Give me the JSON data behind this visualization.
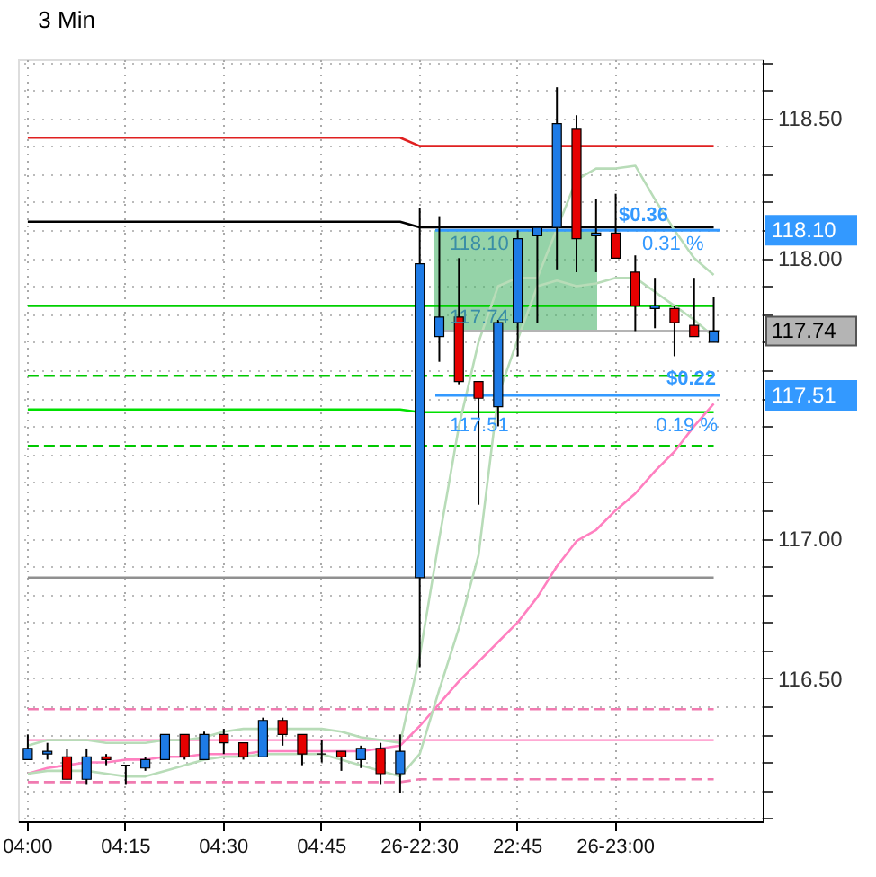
{
  "chart_data": {
    "type": "candlestick",
    "title": "3 Min",
    "categories": [
      "04:00",
      null,
      null,
      null,
      null,
      "04:15",
      null,
      null,
      null,
      null,
      "04:30",
      null,
      null,
      null,
      null,
      "04:45",
      null,
      null,
      null,
      null,
      "26-22:30",
      null,
      null,
      null,
      null,
      "22:45",
      null,
      null,
      null,
      null,
      "26-23:00",
      null,
      null,
      null,
      null,
      null,
      null,
      null
    ],
    "ohlc": [
      [
        116.21,
        116.3,
        116.21,
        116.25
      ],
      [
        116.23,
        116.27,
        116.21,
        116.24
      ],
      [
        116.22,
        116.25,
        116.14,
        116.14
      ],
      [
        116.14,
        116.25,
        116.12,
        116.22
      ],
      [
        116.22,
        116.23,
        116.19,
        116.21
      ],
      [
        116.19,
        116.19,
        116.12,
        116.19
      ],
      [
        116.18,
        116.22,
        116.17,
        116.21
      ],
      [
        116.21,
        116.3,
        116.21,
        116.3
      ],
      [
        116.3,
        116.3,
        116.21,
        116.22
      ],
      [
        116.21,
        116.31,
        116.21,
        116.3
      ],
      [
        116.3,
        116.32,
        116.23,
        116.27
      ],
      [
        116.27,
        116.27,
        116.21,
        116.22
      ],
      [
        116.22,
        116.36,
        116.22,
        116.35
      ],
      [
        116.35,
        116.36,
        116.26,
        116.3
      ],
      [
        116.3,
        116.3,
        116.19,
        116.23
      ],
      [
        116.23,
        116.28,
        116.2,
        116.23
      ],
      [
        116.24,
        116.24,
        116.17,
        116.22
      ],
      [
        116.21,
        116.26,
        116.18,
        116.25
      ],
      [
        116.25,
        116.27,
        116.12,
        116.16
      ],
      [
        116.16,
        116.3,
        116.09,
        116.24
      ],
      [
        116.86,
        118.18,
        116.54,
        117.98
      ],
      [
        117.72,
        118.15,
        117.63,
        117.79
      ],
      [
        117.79,
        118.0,
        117.55,
        117.56
      ],
      [
        117.56,
        117.56,
        117.12,
        117.5
      ],
      [
        117.47,
        117.78,
        117.4,
        117.77
      ],
      [
        117.77,
        118.1,
        117.65,
        118.07
      ],
      [
        118.08,
        118.11,
        117.77,
        118.11
      ],
      [
        118.11,
        118.61,
        117.96,
        118.48
      ],
      [
        118.46,
        118.51,
        117.95,
        118.07
      ],
      [
        118.08,
        118.21,
        117.95,
        118.09
      ],
      [
        118.09,
        118.23,
        118.0,
        118.0
      ],
      [
        117.95,
        118.01,
        117.74,
        117.83
      ],
      [
        117.82,
        117.93,
        117.75,
        117.83
      ],
      [
        117.82,
        117.83,
        117.65,
        117.77
      ],
      [
        117.76,
        117.93,
        117.72,
        117.72
      ],
      [
        117.7,
        117.86,
        117.7,
        117.74
      ],
      null,
      null
    ],
    "colors": [
      "#1e7be6",
      "#1e7be6",
      "#e60000",
      "#1e7be6",
      "#e60000",
      "#000000",
      "#1e7be6",
      "#1e7be6",
      "#e60000",
      "#1e7be6",
      "#e60000",
      "#e60000",
      "#1e7be6",
      "#e60000",
      "#e60000",
      "#000000",
      "#e60000",
      "#1e7be6",
      "#e60000",
      "#1e7be6",
      "#1e7be6",
      "#1e7be6",
      "#e60000",
      "#e60000",
      "#1e7be6",
      "#1e7be6",
      "#1e7be6",
      "#1e7be6",
      "#e60000",
      "#1e7be6",
      "#e60000",
      "#e60000",
      "#1e7be6",
      "#e60000",
      "#e60000",
      "#1e7be6",
      null,
      null
    ],
    "series": [
      {
        "type": "line",
        "color": "#e02020",
        "values": [
          118.43,
          118.43,
          118.43,
          118.43,
          118.43,
          118.43,
          118.43,
          118.43,
          118.43,
          118.43,
          118.43,
          118.43,
          118.43,
          118.43,
          118.43,
          118.43,
          118.43,
          118.43,
          118.43,
          118.43,
          118.4,
          118.4,
          118.4,
          118.4,
          118.4,
          118.4,
          118.4,
          118.4,
          118.4,
          118.4,
          118.4,
          118.4,
          118.4,
          118.4,
          118.4,
          118.4,
          null,
          null
        ]
      },
      {
        "type": "line",
        "color": "#000000",
        "values": [
          118.13,
          118.13,
          118.13,
          118.13,
          118.13,
          118.13,
          118.13,
          118.13,
          118.13,
          118.13,
          118.13,
          118.13,
          118.13,
          118.13,
          118.13,
          118.13,
          118.13,
          118.13,
          118.13,
          118.13,
          118.11,
          118.11,
          118.11,
          118.11,
          118.11,
          118.11,
          118.11,
          118.11,
          118.11,
          118.11,
          118.11,
          118.11,
          118.11,
          118.11,
          118.11,
          118.11,
          null,
          null
        ]
      },
      {
        "type": "line",
        "color": "#00d000",
        "values": [
          117.83,
          117.83,
          117.83,
          117.83,
          117.83,
          117.83,
          117.83,
          117.83,
          117.83,
          117.83,
          117.83,
          117.83,
          117.83,
          117.83,
          117.83,
          117.83,
          117.83,
          117.83,
          117.83,
          117.83,
          117.83,
          117.83,
          117.83,
          117.83,
          117.83,
          117.83,
          117.83,
          117.83,
          117.83,
          117.83,
          117.83,
          117.83,
          117.83,
          117.83,
          117.83,
          117.83,
          null,
          null
        ]
      },
      {
        "type": "line",
        "color": "#00c800",
        "line_style": "dashed",
        "values": [
          117.58,
          117.58,
          117.58,
          117.58,
          117.58,
          117.58,
          117.58,
          117.58,
          117.58,
          117.58,
          117.58,
          117.58,
          117.58,
          117.58,
          117.58,
          117.58,
          117.58,
          117.58,
          117.58,
          117.58,
          117.58,
          117.58,
          117.58,
          117.58,
          117.58,
          117.58,
          117.58,
          117.58,
          117.58,
          117.58,
          117.58,
          117.58,
          117.58,
          117.58,
          117.58,
          117.58,
          null,
          null
        ]
      },
      {
        "type": "line",
        "color": "#00e000",
        "values": [
          117.46,
          117.46,
          117.46,
          117.46,
          117.46,
          117.46,
          117.46,
          117.46,
          117.46,
          117.46,
          117.46,
          117.46,
          117.46,
          117.46,
          117.46,
          117.46,
          117.46,
          117.46,
          117.46,
          117.46,
          117.45,
          117.45,
          117.45,
          117.45,
          117.45,
          117.45,
          117.45,
          117.45,
          117.45,
          117.45,
          117.45,
          117.45,
          117.45,
          117.45,
          117.45,
          117.45,
          null,
          null
        ]
      },
      {
        "type": "line",
        "color": "#00c800",
        "line_style": "dashed",
        "values": [
          117.33,
          117.33,
          117.33,
          117.33,
          117.33,
          117.33,
          117.33,
          117.33,
          117.33,
          117.33,
          117.33,
          117.33,
          117.33,
          117.33,
          117.33,
          117.33,
          117.33,
          117.33,
          117.33,
          117.33,
          117.33,
          117.33,
          117.33,
          117.33,
          117.33,
          117.33,
          117.33,
          117.33,
          117.33,
          117.33,
          117.33,
          117.33,
          117.33,
          117.33,
          117.33,
          117.33,
          null,
          null
        ]
      },
      {
        "type": "line",
        "color": "#909090",
        "values": [
          116.86,
          116.86,
          116.86,
          116.86,
          116.86,
          116.86,
          116.86,
          116.86,
          116.86,
          116.86,
          116.86,
          116.86,
          116.86,
          116.86,
          116.86,
          116.86,
          116.86,
          116.86,
          116.86,
          116.86,
          116.86,
          116.86,
          116.86,
          116.86,
          116.86,
          116.86,
          116.86,
          116.86,
          116.86,
          116.86,
          116.86,
          116.86,
          116.86,
          116.86,
          116.86,
          116.86,
          null,
          null
        ]
      },
      {
        "type": "line",
        "color": "#f07ab0",
        "line_style": "dashed",
        "values": [
          116.39,
          116.39,
          116.39,
          116.39,
          116.39,
          116.39,
          116.39,
          116.39,
          116.39,
          116.39,
          116.39,
          116.39,
          116.39,
          116.39,
          116.39,
          116.39,
          116.39,
          116.39,
          116.39,
          116.39,
          116.39,
          116.39,
          116.39,
          116.39,
          116.39,
          116.39,
          116.39,
          116.39,
          116.39,
          116.39,
          116.39,
          116.39,
          116.39,
          116.39,
          116.39,
          116.39,
          null,
          null
        ]
      },
      {
        "type": "line",
        "color": "#ffaad4",
        "values": [
          116.28,
          116.28,
          116.28,
          116.28,
          116.28,
          116.28,
          116.28,
          116.28,
          116.28,
          116.28,
          116.28,
          116.28,
          116.28,
          116.28,
          116.28,
          116.28,
          116.28,
          116.28,
          116.28,
          116.28,
          116.28,
          116.28,
          116.28,
          116.28,
          116.28,
          116.28,
          116.28,
          116.28,
          116.28,
          116.28,
          116.28,
          116.28,
          116.28,
          116.28,
          116.28,
          116.28,
          null,
          null
        ]
      },
      {
        "type": "line",
        "color": "#f07ab0",
        "line_style": "dashed",
        "values": [
          116.13,
          116.13,
          116.13,
          116.13,
          116.13,
          116.13,
          116.13,
          116.13,
          116.13,
          116.13,
          116.13,
          116.13,
          116.13,
          116.13,
          116.13,
          116.13,
          116.13,
          116.13,
          116.13,
          116.13,
          116.14,
          116.14,
          116.14,
          116.14,
          116.14,
          116.14,
          116.14,
          116.14,
          116.14,
          116.14,
          116.14,
          116.14,
          116.14,
          116.14,
          116.14,
          116.14,
          null,
          null
        ]
      },
      {
        "type": "line",
        "color": "#ff80c0",
        "values": [
          116.16,
          116.18,
          116.19,
          116.2,
          116.2,
          116.21,
          116.21,
          116.22,
          116.22,
          116.23,
          116.23,
          116.23,
          116.24,
          116.24,
          116.24,
          116.24,
          116.24,
          116.24,
          116.25,
          116.26,
          116.33,
          116.41,
          116.49,
          116.56,
          116.63,
          116.7,
          116.79,
          116.9,
          116.99,
          117.03,
          117.1,
          117.16,
          117.24,
          117.31,
          117.4,
          117.48,
          null,
          null
        ]
      },
      {
        "type": "line",
        "color": "#b8dcb8",
        "values": [
          116.26,
          116.28,
          116.28,
          116.28,
          116.27,
          116.27,
          116.27,
          116.28,
          116.28,
          116.29,
          116.31,
          116.32,
          116.32,
          116.32,
          116.32,
          116.32,
          116.31,
          116.29,
          116.28,
          116.27,
          116.58,
          117.0,
          117.4,
          117.7,
          117.9,
          117.93,
          117.93,
          null,
          118.28,
          118.32,
          118.32,
          118.33,
          118.21,
          118.1,
          118.0,
          117.94,
          null,
          null
        ]
      },
      {
        "type": "line",
        "color": "#b8dcb8",
        "values": [
          116.16,
          116.17,
          116.17,
          116.17,
          116.16,
          116.15,
          116.15,
          116.17,
          116.19,
          116.21,
          116.22,
          116.22,
          116.23,
          116.23,
          116.23,
          116.23,
          116.21,
          116.19,
          116.17,
          116.15,
          116.23,
          116.46,
          116.68,
          116.94,
          117.51,
          117.71,
          117.9,
          117.92,
          117.9,
          117.91,
          117.93,
          117.93,
          117.88,
          117.83,
          117.78,
          117.72,
          null,
          null
        ]
      }
    ],
    "ylim": [
      115.99,
      118.71
    ],
    "yticks": [
      {
        "value": 116.0,
        "label": null
      },
      {
        "value": 116.1,
        "label": null
      },
      {
        "value": 116.2,
        "label": null
      },
      {
        "value": 116.3,
        "label": null
      },
      {
        "value": 116.4,
        "label": null
      },
      {
        "value": 116.5,
        "label": "116.50"
      },
      {
        "value": 116.6,
        "label": null
      },
      {
        "value": 116.7,
        "label": null
      },
      {
        "value": 116.8,
        "label": null
      },
      {
        "value": 116.9,
        "label": null
      },
      {
        "value": 117.0,
        "label": "117.00"
      },
      {
        "value": 117.1,
        "label": null
      },
      {
        "value": 117.2,
        "label": null
      },
      {
        "value": 117.3,
        "label": null
      },
      {
        "value": 117.4,
        "label": null
      },
      {
        "value": 117.5,
        "label": null
      },
      {
        "value": 117.6,
        "label": null
      },
      {
        "value": 117.7,
        "label": null
      },
      {
        "value": 117.8,
        "label": null
      },
      {
        "value": 117.9,
        "label": null
      },
      {
        "value": 118.0,
        "label": "118.00"
      },
      {
        "value": 118.1,
        "label": null
      },
      {
        "value": 118.2,
        "label": null
      },
      {
        "value": 118.3,
        "label": null
      },
      {
        "value": 118.4,
        "label": null
      },
      {
        "value": 118.5,
        "label": "118.50"
      },
      {
        "value": 118.6,
        "label": null
      },
      {
        "value": 118.7,
        "label": null
      }
    ],
    "ref_lines": [
      {
        "axis": "y",
        "value": 118.1,
        "label": "118.10",
        "color": "#3399ff"
      },
      {
        "axis": "y",
        "value": 117.74,
        "label": "117.74",
        "color": "#b4b4b4"
      },
      {
        "axis": "y",
        "value": 117.51,
        "label": "117.51",
        "color": "#3399ff"
      }
    ],
    "bands": [
      {
        "axis": "y",
        "from": 117.74,
        "to": 118.1,
        "color": "#4fb56e"
      }
    ],
    "annotations": [
      {
        "text": "118.10",
        "y": 118.1
      },
      {
        "text": "117.74",
        "y": 117.74
      },
      {
        "text": "$0.36",
        "y": 118.1
      },
      {
        "text": "0.31 %",
        "y": 118.1
      },
      {
        "text": "117.51",
        "y": 117.51
      },
      {
        "text": "$0.22",
        "y": 117.51
      },
      {
        "text": "0.19 %",
        "y": 117.51
      }
    ],
    "grid": true
  }
}
